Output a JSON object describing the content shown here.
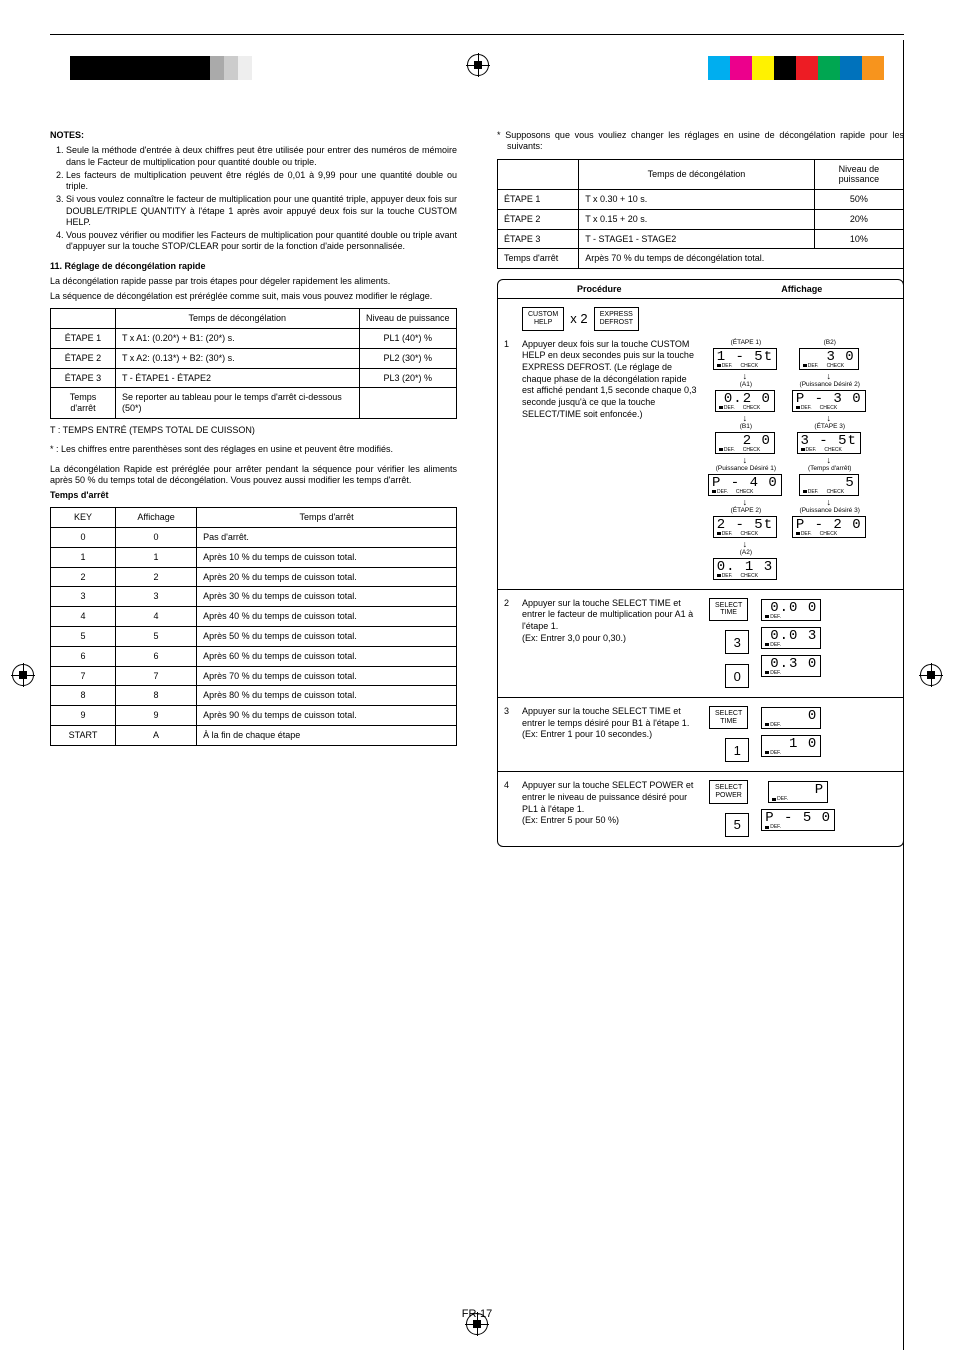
{
  "page_number": "FR-17",
  "reg_colors_left": [
    "#000000",
    "#000000",
    "#000000",
    "#000000",
    "#000000",
    "#aaaaaa",
    "#cccccc",
    "#eeeeee"
  ],
  "reg_colors_right": [
    "#00aeef",
    "#ec008c",
    "#fff200",
    "#000000",
    "#ed1c24",
    "#00a651",
    "#0072bc",
    "#f7941d"
  ],
  "left": {
    "notes_heading": "NOTES:",
    "notes": [
      "Seule la méthode d'entrée à deux chiffres peut être utilisée pour entrer des numéros de mémoire dans le Facteur de multiplication pour quantité double ou triple.",
      "Les facteurs de multiplication peuvent être réglés de 0,01 à 9,99 pour une quantité double ou triple.",
      "Si vous voulez connaître le facteur de multiplication pour une quantité triple, appuyer deux fois sur DOUBLE/TRIPLE QUANTITY à l'étape 1 après avoir appuyé deux fois sur la touche CUSTOM HELP.",
      "Vous pouvez vérifier ou modifier les Facteurs de multiplication pour quantité double ou triple avant d'appuyer sur la touche STOP/CLEAR pour sortir de la fonction d'aide personnalisée."
    ],
    "section11_heading": "11. Réglage de décongélation rapide",
    "section11_p1": "La décongélation rapide passe par trois étapes pour dégeler rapidement les aliments.",
    "section11_p2": "La séquence de décongélation est préréglée comme suit, mais vous pouvez modifier le réglage.",
    "t1_headers": [
      "",
      "Temps de décongélation",
      "Niveau de puissance"
    ],
    "t1_rows": [
      [
        "ÉTAPE 1",
        "T  x A1: (0.20*) + B1: (20*) s.",
        "PL1 (40*) %"
      ],
      [
        "ÉTAPE 2",
        "T x A2: (0.13*) + B2: (30*) s.",
        "PL2 (30*) %"
      ],
      [
        "ÉTAPE 3",
        "T - ÉTAPE1 - ÉTAPE2",
        "PL3 (20*) %"
      ],
      [
        "Temps d'arrêt",
        "Se reporter au tableau pour le temps d'arrêt ci-dessous (50*)",
        ""
      ]
    ],
    "t1_foot1": "T  :  TEMPS ENTRÉ (TEMPS TOTAL DE CUISSON)",
    "t1_foot2": "*  :  Les chiffres entre parenthèses sont des réglages en usine et peuvent être modifiés.",
    "section11_p3": "La décongélation Rapide est préréglée pour arrêter pendant la séquence pour vérifier les aliments après 50 % du temps total de décongélation. Vous pouvez aussi modifier les temps d'arrêt.",
    "stoptime_heading": "Temps d'arrêt",
    "t2_headers": [
      "KEY",
      "Affichage",
      "Temps d'arrêt"
    ],
    "t2_rows": [
      [
        "0",
        "0",
        "Pas d'arrêt."
      ],
      [
        "1",
        "1",
        "Après 10 % du temps de cuisson total."
      ],
      [
        "2",
        "2",
        "Après 20 % du temps de cuisson total."
      ],
      [
        "3",
        "3",
        "Après 30 % du temps de cuisson total."
      ],
      [
        "4",
        "4",
        "Après 40 % du temps de cuisson total."
      ],
      [
        "5",
        "5",
        "Après 50 % du temps de cuisson total."
      ],
      [
        "6",
        "6",
        "Après 60 % du temps de cuisson total."
      ],
      [
        "7",
        "7",
        "Après 70 % du temps de cuisson total."
      ],
      [
        "8",
        "8",
        "Après 80 % du temps de cuisson total."
      ],
      [
        "9",
        "9",
        "Après 90 % du temps de cuisson total."
      ],
      [
        "START",
        "A",
        "À la fin de chaque étape"
      ]
    ]
  },
  "right": {
    "intro": "*  Supposons que vous vouliez changer les réglages en usine de décongélation rapide pour les suivants:",
    "t3_headers": [
      "",
      "Temps de décongélation",
      "Niveau de puissance"
    ],
    "t3_rows": [
      [
        "ÉTAPE 1",
        "T x 0.30 + 10 s.",
        "50%"
      ],
      [
        "ÉTAPE 2",
        "T x 0.15 + 20 s.",
        "20%"
      ],
      [
        "ÉTAPE 3",
        "T - STAGE1 - STAGE2",
        "10%"
      ],
      [
        "Temps d'arrêt",
        "Arpès 70 % du temps de décongélation total.",
        ""
      ]
    ],
    "proc_head_left": "Procédure",
    "proc_head_right": "Affichage",
    "btn_custom_help": "CUSTOM\nHELP",
    "btn_express_defrost": "EXPRESS\nDEFROST",
    "x2": "x 2",
    "step1_text": "Appuyer deux fois sur la touche CUSTOM HELP en deux secondes puis sur la touche EXPRESS DEFROST. (Le réglage de chaque phase de la décongélation rapide est affiché pendant 1,5 seconde chaque 0,3 seconde jusqu'à ce que la touche SELECT/TIME soit enfoncée.)",
    "step1_labels": {
      "etape1": "(ÉTAPE 1)",
      "a1": "(A1)",
      "b1": "(B1)",
      "pd1": "(Puissance Désiré 1)",
      "etape2": "(ÉTAPE 2)",
      "a2": "(A2)",
      "b2": "(B2)",
      "pd2": "(Puissance Désiré 2)",
      "etape3": "(ÉTAPE 3)",
      "ta": "(Temps d'arrêt)",
      "pd3": "(Puissance Désiré 3)"
    },
    "step1_lcd": {
      "etape1": "1 - 5t",
      "a1": "0.2 0",
      "b1": "2 0",
      "pd1": "P - 4 0",
      "etape2": "2 - 5t",
      "a2": "0. 1 3",
      "b2": "3 0",
      "pd2": "P - 3 0",
      "etape3": "3 - 5t",
      "ta": "5",
      "pd3": "P - 2 0"
    },
    "def_label": "DEF.",
    "check_label": "CHECK",
    "step2_text": "Appuyer sur la touche SELECT TIME et entrer le facteur de multiplication pour A1 à l'étape 1.\n(Ex: Entrer 3,0 pour 0,30.)",
    "btn_select_time": "SELECT\nTIME",
    "step2_keys": [
      "3",
      "0"
    ],
    "step2_lcd": [
      "0.0 0",
      "0.0 3",
      "0.3 0"
    ],
    "step3_text": "Appuyer sur la touche SELECT TIME et entrer le temps désiré pour B1 à l'étape 1.\n(Ex: Entrer 1 pour 10 secondes.)",
    "step3_keys": [
      "1"
    ],
    "step3_lcd": [
      "0",
      "1 0"
    ],
    "step4_text": "Appuyer sur la touche SELECT POWER et entrer le niveau de puissance désiré pour PL1 à l'étape 1.\n(Ex: Entrer 5 pour 50 %)",
    "btn_select_power": "SELECT\nPOWER",
    "step4_keys": [
      "5"
    ],
    "step4_lcd": [
      "P",
      "P - 5 0"
    ]
  }
}
